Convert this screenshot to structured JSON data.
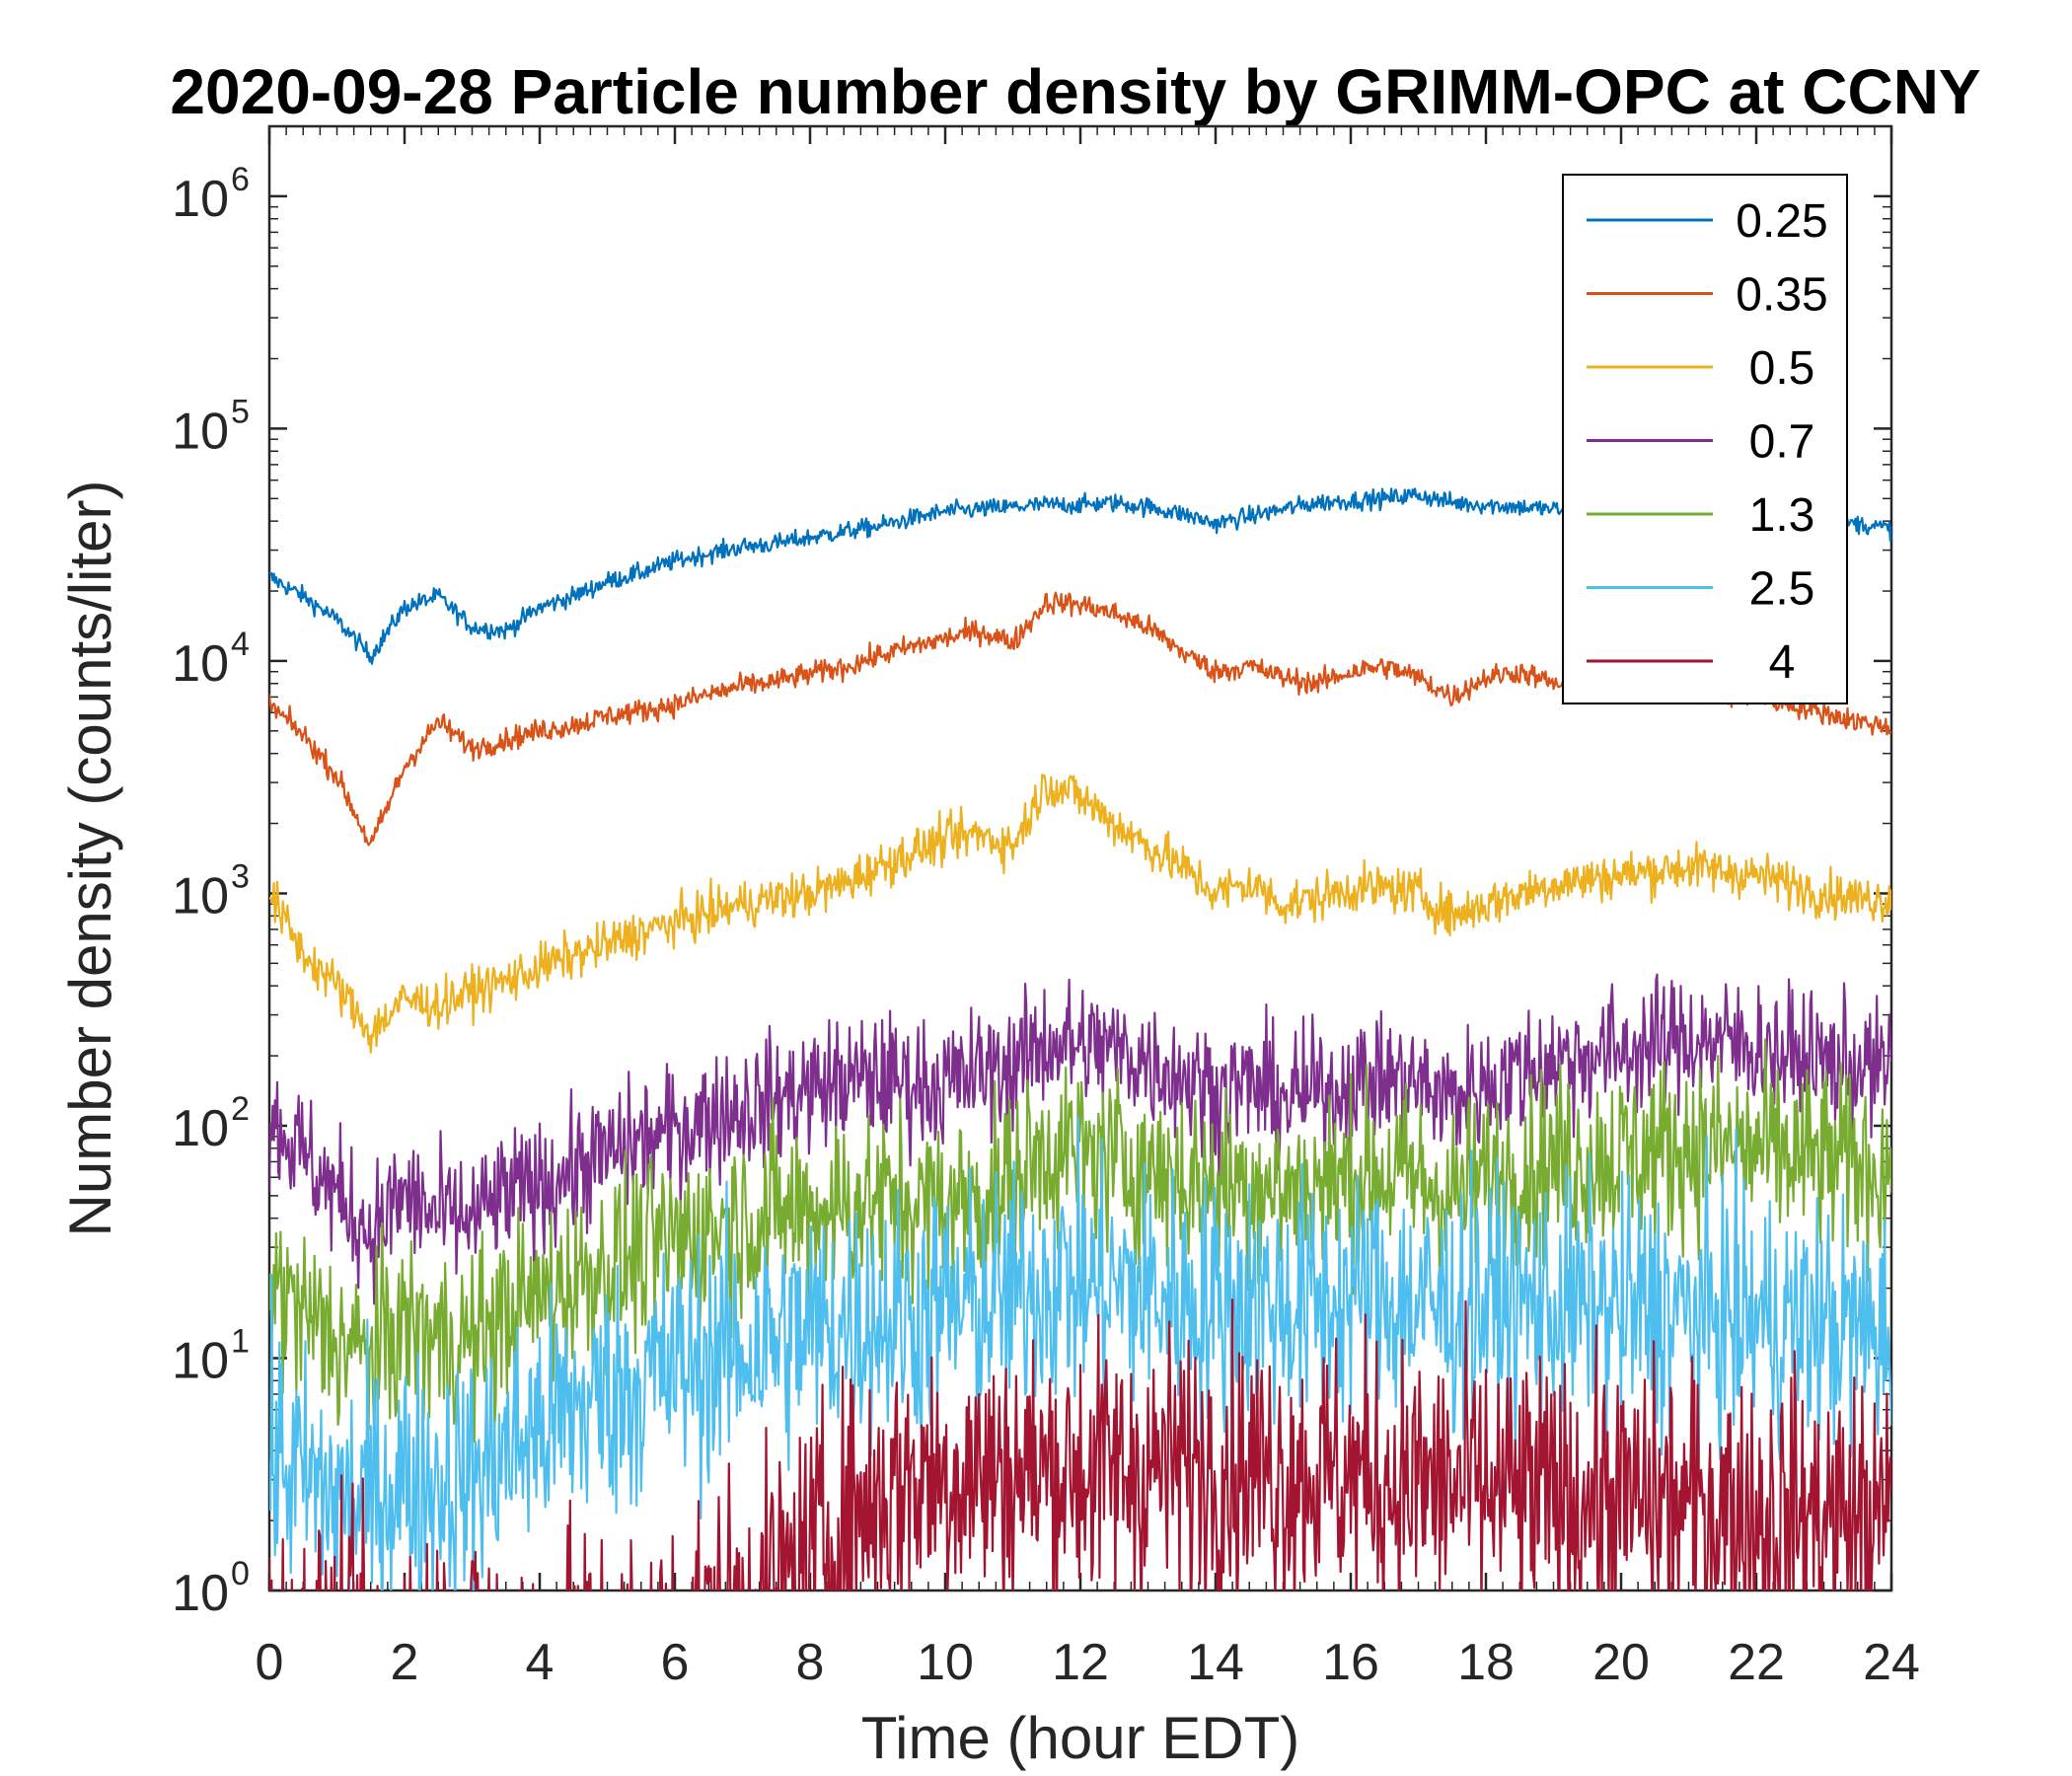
{
  "chart_data": {
    "type": "line",
    "title": "2020-09-28 Particle number density by GRIMM-OPC at CCNY",
    "xlabel": "Time (hour EDT)",
    "ylabel": "Number density (counts/liter)",
    "xlim": [
      0,
      24
    ],
    "ylim": [
      1,
      2000000
    ],
    "yscale": "log",
    "xticks": [
      "0",
      "2",
      "4",
      "6",
      "8",
      "10",
      "12",
      "14",
      "16",
      "18",
      "20",
      "22",
      "24"
    ],
    "yticks": [
      {
        "base": "10",
        "exp": "0"
      },
      {
        "base": "10",
        "exp": "1"
      },
      {
        "base": "10",
        "exp": "2"
      },
      {
        "base": "10",
        "exp": "3"
      },
      {
        "base": "10",
        "exp": "4"
      },
      {
        "base": "10",
        "exp": "5"
      },
      {
        "base": "10",
        "exp": "6"
      }
    ],
    "legend_position": "top-right",
    "x": [
      0,
      0.5,
      1,
      1.5,
      2,
      2.5,
      3,
      3.5,
      4,
      4.5,
      5,
      5.5,
      6,
      6.5,
      7,
      7.5,
      8,
      8.5,
      9,
      9.5,
      10,
      10.5,
      11,
      11.5,
      12,
      12.5,
      13,
      13.5,
      14,
      14.5,
      15,
      15.5,
      16,
      16.5,
      17,
      17.5,
      18,
      18.5,
      19,
      19.5,
      20,
      20.5,
      21,
      21.5,
      22,
      22.5,
      23,
      23.5,
      24
    ],
    "series": [
      {
        "name": "0.25",
        "color": "#0072BD",
        "noise": 0.04,
        "values": [
          23000,
          19000,
          15000,
          10500,
          17000,
          19000,
          14000,
          13500,
          17000,
          19000,
          22000,
          24000,
          27000,
          29000,
          31000,
          32000,
          34000,
          36000,
          38000,
          41000,
          44000,
          45000,
          46000,
          47000,
          47000,
          48000,
          46000,
          43000,
          39000,
          42000,
          45000,
          48000,
          49000,
          50000,
          52000,
          48000,
          47000,
          46000,
          45000,
          44000,
          43000,
          42000,
          40000,
          41000,
          41000,
          40000,
          40000,
          39000,
          37000
        ]
      },
      {
        "name": "0.35",
        "color": "#D95319",
        "noise": 0.05,
        "values": [
          6500,
          4800,
          3200,
          1600,
          3500,
          5500,
          4200,
          4600,
          5000,
          5300,
          5800,
          6100,
          6500,
          7200,
          7800,
          8200,
          8800,
          9400,
          10500,
          11500,
          12500,
          13500,
          12000,
          18000,
          17500,
          16000,
          14000,
          11000,
          9000,
          9500,
          8500,
          8000,
          9000,
          9500,
          8500,
          7000,
          8500,
          9000,
          8000,
          7500,
          8000,
          8000,
          7500,
          7000,
          7000,
          6500,
          6000,
          5500,
          5200
        ]
      },
      {
        "name": "0.5",
        "color": "#EDB120",
        "noise": 0.1,
        "values": [
          1000,
          550,
          400,
          250,
          350,
          330,
          380,
          420,
          480,
          540,
          600,
          680,
          750,
          820,
          900,
          950,
          1000,
          1100,
          1300,
          1500,
          1700,
          1800,
          1600,
          3000,
          2600,
          2000,
          1600,
          1300,
          1000,
          1100,
          900,
          950,
          1050,
          1050,
          1000,
          800,
          900,
          1000,
          1100,
          1150,
          1200,
          1250,
          1300,
          1250,
          1200,
          1100,
          1000,
          950,
          950
        ]
      },
      {
        "name": "0.7",
        "color": "#7E2F8E",
        "noise": 0.28,
        "values": [
          110,
          75,
          50,
          35,
          50,
          40,
          40,
          50,
          55,
          65,
          75,
          85,
          95,
          110,
          120,
          130,
          145,
          155,
          160,
          155,
          150,
          170,
          180,
          230,
          220,
          210,
          190,
          165,
          140,
          150,
          130,
          140,
          150,
          160,
          150,
          130,
          150,
          170,
          190,
          200,
          210,
          220,
          240,
          230,
          220,
          200,
          190,
          180,
          170
        ]
      },
      {
        "name": "1.3",
        "color": "#77AC30",
        "noise": 0.4,
        "values": [
          22,
          15,
          12,
          10,
          14,
          12,
          12,
          15,
          18,
          22,
          25,
          28,
          32,
          36,
          40,
          42,
          44,
          46,
          48,
          46,
          44,
          50,
          55,
          80,
          75,
          70,
          65,
          60,
          55,
          58,
          52,
          55,
          60,
          62,
          58,
          50,
          58,
          65,
          70,
          72,
          75,
          78,
          82,
          80,
          78,
          74,
          70,
          68,
          65
        ]
      },
      {
        "name": "2.5",
        "color": "#4DBEEE",
        "noise": 0.55,
        "values": [
          4,
          3,
          2.5,
          2.5,
          3,
          3,
          3,
          4,
          5,
          6,
          7,
          8,
          9,
          10,
          11,
          12,
          13,
          14,
          15,
          15,
          16,
          17,
          18,
          22,
          21,
          20,
          19,
          18,
          17,
          18,
          17,
          17,
          18,
          18,
          17,
          16,
          17,
          17,
          17,
          16,
          16,
          16,
          15,
          15,
          15,
          14,
          14,
          13,
          13
        ]
      },
      {
        "name": "4",
        "color": "#A2142F",
        "noise": 0.6,
        "values": [
          0.5,
          0.5,
          0.5,
          0.5,
          0.5,
          0.5,
          0.5,
          0.5,
          0.5,
          0.5,
          0.5,
          0.5,
          0.6,
          0.7,
          0.8,
          1.0,
          1.4,
          2.0,
          2.5,
          3.0,
          3.2,
          3.2,
          3.2,
          3.3,
          3.3,
          3.3,
          3.4,
          3.4,
          3.5,
          3.4,
          3.3,
          3.2,
          3.1,
          3.0,
          2.9,
          2.8,
          2.7,
          2.6,
          2.5,
          2.5,
          2.4,
          2.4,
          2.3,
          2.3,
          2.2,
          2.2,
          2.1,
          2.1,
          2.0
        ]
      }
    ]
  }
}
